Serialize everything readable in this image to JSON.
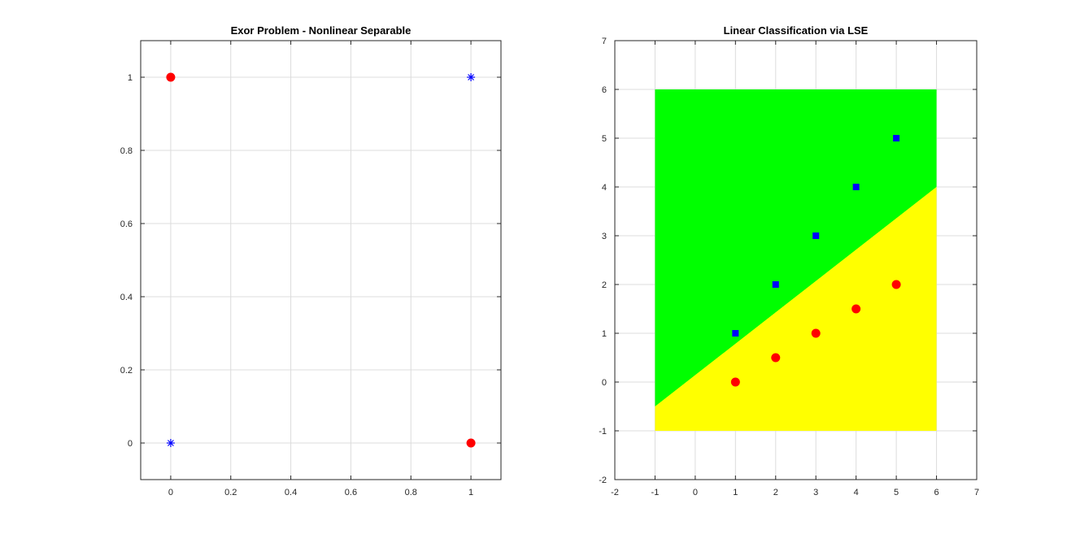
{
  "chart_data": [
    {
      "type": "scatter",
      "title": "Exor Problem - Nonlinear Separable",
      "xlabel": "",
      "ylabel": "",
      "xlim": [
        -0.1,
        1.1
      ],
      "ylim": [
        -0.1,
        1.1
      ],
      "xticks": [
        0,
        0.2,
        0.4,
        0.6,
        0.8,
        1
      ],
      "xtick_labels": [
        "0",
        "0.2",
        "0.4",
        "0.6",
        "0.8",
        "1"
      ],
      "yticks": [
        0,
        0.2,
        0.4,
        0.6,
        0.8,
        1
      ],
      "ytick_labels": [
        "0",
        "0.2",
        "0.4",
        "0.6",
        "0.8",
        "1"
      ],
      "grid": true,
      "series": [
        {
          "marker": "circle",
          "color": "#ff0000",
          "points": [
            [
              0,
              1
            ],
            [
              1,
              0
            ]
          ]
        },
        {
          "marker": "asterisk",
          "color": "#0000ff",
          "points": [
            [
              0,
              0
            ],
            [
              1,
              1
            ]
          ]
        }
      ]
    },
    {
      "type": "scatter",
      "title": "Linear Classification via LSE",
      "xlabel": "",
      "ylabel": "",
      "xlim": [
        -2,
        7
      ],
      "ylim": [
        -2,
        7
      ],
      "xticks": [
        -2,
        -1,
        0,
        1,
        2,
        3,
        4,
        5,
        6,
        7
      ],
      "xtick_labels": [
        "-2",
        "-1",
        "0",
        "1",
        "2",
        "3",
        "4",
        "5",
        "6",
        "7"
      ],
      "yticks": [
        -2,
        -1,
        0,
        1,
        2,
        3,
        4,
        5,
        6,
        7
      ],
      "ytick_labels": [
        "-2",
        "-1",
        "0",
        "1",
        "2",
        "3",
        "4",
        "5",
        "6",
        "7"
      ],
      "grid": true,
      "regions": [
        {
          "name": "",
          "color": "#00ff00",
          "polygon": [
            [
              -1,
              -0.5
            ],
            [
              6,
              4
            ],
            [
              6,
              6
            ],
            [
              -1,
              6
            ]
          ]
        },
        {
          "name": "",
          "color": "#ffff00",
          "polygon": [
            [
              -1,
              -1
            ],
            [
              6,
              -1
            ],
            [
              6,
              4
            ],
            [
              -1,
              -0.5
            ]
          ]
        }
      ],
      "series": [
        {
          "marker": "square",
          "color": "#0000ff",
          "points": [
            [
              1,
              1
            ],
            [
              2,
              2
            ],
            [
              3,
              3
            ],
            [
              4,
              4
            ],
            [
              5,
              5
            ]
          ]
        },
        {
          "marker": "circle",
          "color": "#ff0000",
          "points": [
            [
              1,
              0
            ],
            [
              2,
              0.5
            ],
            [
              3,
              1
            ],
            [
              4,
              1.5
            ],
            [
              5,
              2
            ]
          ]
        }
      ]
    }
  ]
}
